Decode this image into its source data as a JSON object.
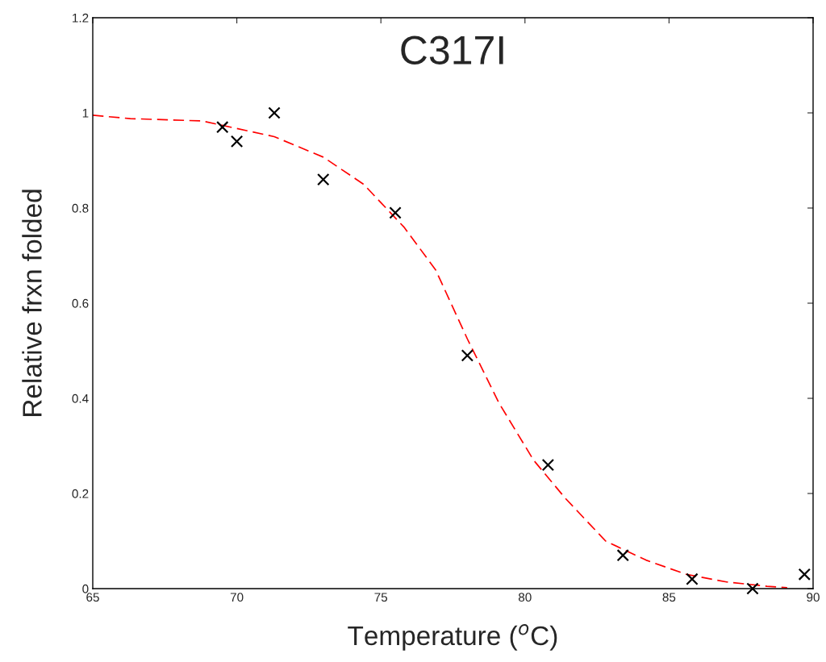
{
  "chart_data": {
    "type": "scatter",
    "title": "C317I",
    "xlabel": "Temperature ($^{o}$C)",
    "ylabel": "Relative frxn folded",
    "xlim": [
      65,
      90
    ],
    "xticks": [
      65,
      70,
      75,
      80,
      85,
      90
    ],
    "ylim": [
      0,
      1.2
    ],
    "yticks": [
      0,
      0.2,
      0.4,
      0.6,
      0.8,
      1,
      1.2
    ],
    "grid": false,
    "series": [
      {
        "color": "#000000",
        "marker": "cross",
        "x": [
          69.5,
          70.0,
          71.3,
          73.0,
          75.5,
          78.0,
          80.8,
          83.4,
          85.8,
          87.9,
          89.7
        ],
        "values": [
          0.97,
          0.94,
          1.0,
          0.86,
          0.79,
          0.49,
          0.26,
          0.07,
          0.02,
          0.0,
          0.03
        ]
      },
      {
        "type": "line",
        "color": "#ff0000",
        "line_style": "dashed",
        "marker": "none",
        "x": [
          65,
          66.3,
          68.8,
          71.3,
          73,
          74.4,
          75.8,
          76.9,
          78,
          79.1,
          80.3,
          81.4,
          82.8,
          84.2,
          85.6,
          87,
          88.4,
          89.1
        ],
        "values": [
          0.995,
          0.988,
          0.983,
          0.95,
          0.907,
          0.85,
          0.76,
          0.67,
          0.525,
          0.39,
          0.27,
          0.19,
          0.1,
          0.06,
          0.03,
          0.014,
          0.005,
          0.002
        ]
      }
    ]
  }
}
